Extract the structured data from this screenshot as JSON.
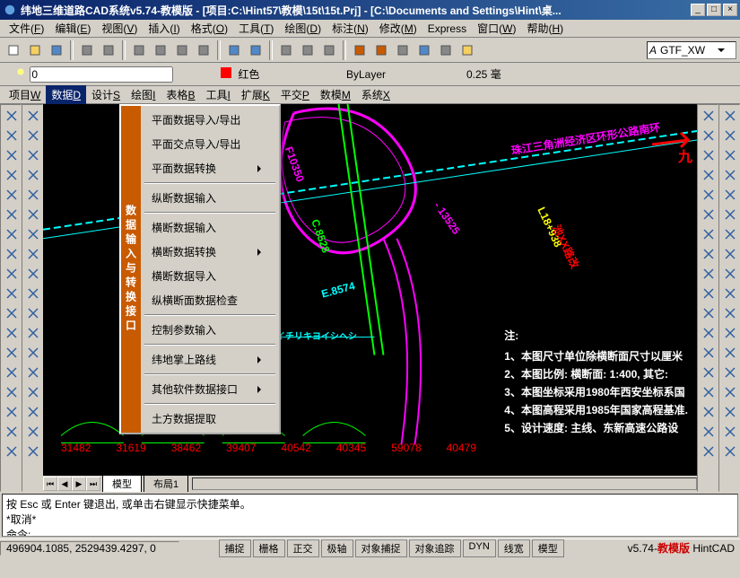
{
  "titlebar": {
    "title": "纬地三维道路CAD系统v5.74-教模版 - [项目:C:\\Hint57\\教模\\15t\\15t.Prj] - [C:\\Documents and Settings\\Hint\\桌..."
  },
  "window_buttons": {
    "minimize": "_",
    "maximize": "□",
    "close": "×"
  },
  "menubar": {
    "items": [
      {
        "label": "文件",
        "key": "F"
      },
      {
        "label": "编辑",
        "key": "E"
      },
      {
        "label": "视图",
        "key": "V"
      },
      {
        "label": "插入",
        "key": "I"
      },
      {
        "label": "格式",
        "key": "O"
      },
      {
        "label": "工具",
        "key": "T"
      },
      {
        "label": "绘图",
        "key": "D"
      },
      {
        "label": "标注",
        "key": "N"
      },
      {
        "label": "修改",
        "key": "M"
      },
      {
        "label": "Express",
        "key": ""
      },
      {
        "label": "窗口",
        "key": "W"
      },
      {
        "label": "帮助",
        "key": "H"
      }
    ]
  },
  "toolbar1": {
    "icons": [
      {
        "name": "new-icon",
        "color": "#fff"
      },
      {
        "name": "open-icon",
        "color": "#f5d060"
      },
      {
        "name": "save-icon",
        "color": "#5088c8"
      },
      {
        "name": "print-icon",
        "color": "#888"
      },
      {
        "name": "preview-icon",
        "color": "#888"
      },
      {
        "name": "cut-icon",
        "color": "#888"
      },
      {
        "name": "copy-icon",
        "color": "#888"
      },
      {
        "name": "paste-icon",
        "color": "#888"
      },
      {
        "name": "props-icon",
        "color": "#888"
      },
      {
        "name": "undo-icon",
        "color": "#5088c8"
      },
      {
        "name": "redo-icon",
        "color": "#5088c8"
      },
      {
        "name": "pan-icon",
        "color": "#888"
      },
      {
        "name": "zoom-icon",
        "color": "#888"
      },
      {
        "name": "zoom-prev-icon",
        "color": "#888"
      },
      {
        "name": "tool1-icon",
        "color": "#c85a00"
      },
      {
        "name": "tool2-icon",
        "color": "#c85a00"
      },
      {
        "name": "dim-icon",
        "color": "#888"
      },
      {
        "name": "table-icon",
        "color": "#5088c8"
      },
      {
        "name": "block-icon",
        "color": "#888"
      },
      {
        "name": "help-icon",
        "color": "#f5d060"
      }
    ],
    "font_combo": "GTF_XW"
  },
  "toolbar2": {
    "layer_icons": [
      "layer-btn1",
      "layer-btn2",
      "layer-btn3"
    ],
    "layer_value": "0",
    "dim_icons": [
      "dim1",
      "dim2"
    ],
    "color_label": "红色",
    "color_swatch": "#ff0000",
    "layer_combo2": "ByLayer",
    "lineweight": "0.25 毫"
  },
  "submenubar": {
    "items": [
      {
        "label": "项目",
        "key": "W"
      },
      {
        "label": "数据",
        "key": "D"
      },
      {
        "label": "设计",
        "key": "S"
      },
      {
        "label": "绘图",
        "key": "I"
      },
      {
        "label": "表格",
        "key": "B"
      },
      {
        "label": "工具",
        "key": "I"
      },
      {
        "label": "扩展",
        "key": "K"
      },
      {
        "label": "平交",
        "key": "P"
      },
      {
        "label": "数模",
        "key": "M"
      },
      {
        "label": "系统",
        "key": "X"
      }
    ],
    "highlighted_index": 1
  },
  "dropdown": {
    "side_label": "数据输入与转换接口",
    "groups": [
      [
        {
          "label": "平面数据导入/导出",
          "submenu": false
        },
        {
          "label": "平面交点导入/导出",
          "submenu": false
        },
        {
          "label": "平面数据转换",
          "submenu": true
        }
      ],
      [
        {
          "label": "纵断数据输入",
          "submenu": false
        }
      ],
      [
        {
          "label": "横断数据输入",
          "submenu": false
        },
        {
          "label": "横断数据转换",
          "submenu": true
        },
        {
          "label": "横断数据导入",
          "submenu": false
        },
        {
          "label": "纵横断面数据检查",
          "submenu": false
        }
      ],
      [
        {
          "label": "控制参数输入",
          "submenu": false
        }
      ],
      [
        {
          "label": "纬地掌上路线",
          "submenu": true
        }
      ],
      [
        {
          "label": "其他软件数据接口",
          "submenu": true
        }
      ],
      [
        {
          "label": "土方数据提取",
          "submenu": false
        }
      ]
    ]
  },
  "left_tools": [
    "line",
    "ray",
    "pline",
    "polygon",
    "rect",
    "arc",
    "circle",
    "spline",
    "ellipse",
    "block",
    "point",
    "hatch",
    "region",
    "table",
    "text",
    "dim",
    "dim2",
    "dim3"
  ],
  "right_tools": [
    "erase",
    "copy",
    "mirror",
    "offset",
    "array",
    "move",
    "rotate",
    "scale",
    "stretch",
    "trim",
    "extend",
    "break",
    "chamfer",
    "fillet",
    "explode",
    "props",
    "match",
    "aux"
  ],
  "right_tools2": [
    "t1",
    "t2",
    "t3",
    "t4",
    "t5",
    "t6",
    "t7",
    "t8",
    "t9",
    "t10",
    "t11",
    "t12",
    "t13",
    "t14",
    "t15",
    "t16",
    "t17",
    "t18"
  ],
  "canvas": {
    "road_name": "珠江三角洲经济区环形公路南环",
    "arrow_label": "九",
    "label_loop": "L18+938",
    "label_side": "池XX路改",
    "label_k": "C.8528",
    "label_e": "E.8574",
    "label_f": "F10350",
    "label_h": "- 13525",
    "label_heichi": "ムサヘイチリキヨイシヘシ",
    "stations": [
      "31482",
      "31619",
      "38462",
      "39407",
      "40542",
      "40345",
      "59078",
      "40479"
    ],
    "notes_title": "注:",
    "notes": [
      "1、本图尺寸单位除横断面尺寸以厘米",
      "2、本图比例: 横断面: 1:400, 其它:",
      "3、本图坐标采用1980年西安坐标系国",
      "4、本图高程采用1985年国家高程基准.",
      "5、设计速度: 主线、东新高速公路设"
    ],
    "colors": {
      "magenta": "#ff00ff",
      "cyan": "#00ffff",
      "green": "#00ff00",
      "red": "#ff0000",
      "yellow": "#ffff00",
      "white": "#ffffff"
    }
  },
  "tabs": {
    "model": "模型",
    "layout1": "布局1"
  },
  "cmdline": {
    "line1": "按 Esc 或 Enter 键退出, 或单击右键显示快捷菜单。",
    "line2": "*取消*",
    "prompt": "命令:"
  },
  "statusbar": {
    "coords": "496904.1085, 2529439.4297, 0",
    "toggles": [
      "捕捉",
      "栅格",
      "正交",
      "极轴",
      "对象捕捉",
      "对象追踪",
      "DYN",
      "线宽",
      "模型"
    ],
    "version": "v5.74-",
    "version_red": "教模版",
    "brand": " HintCAD"
  }
}
